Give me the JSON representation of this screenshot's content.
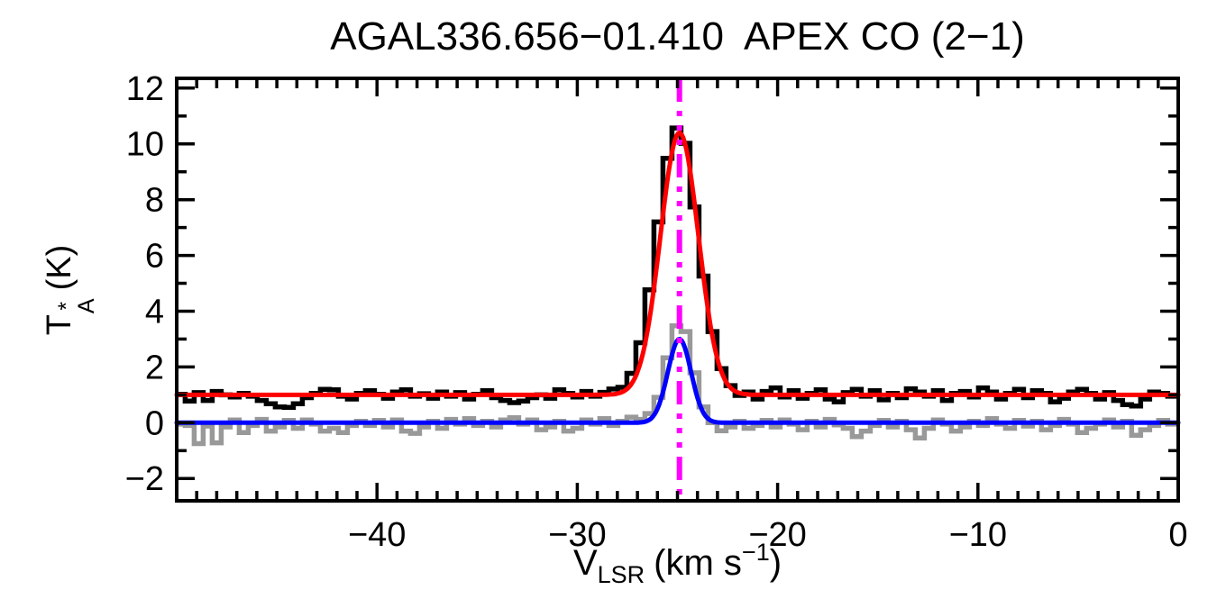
{
  "figure": {
    "title": "AGAL336.656−01.410  APEX CO (2−1)",
    "background_color": "#FFFFFF",
    "axis_color": "#000000"
  },
  "axis_labels": {
    "y_base": "T",
    "y_sup": "*",
    "y_sub": "A",
    "y_unit": "(K)",
    "x_base": "V",
    "x_sub": "LSR",
    "x_unit_open": "(km s",
    "x_sup": "−1",
    "x_unit_close": ")"
  },
  "chart_data": {
    "type": "line",
    "title": "AGAL336.656−01.410  APEX CO (2−1)",
    "xlabel": "V_LSR (km s^−1)",
    "ylabel": "T*_A (K)",
    "xlim": [
      -50,
      0
    ],
    "ylim": [
      -2.8,
      12.35
    ],
    "x_major_ticks": [
      -40,
      -30,
      -20,
      -10,
      0
    ],
    "x_minor_step": 1,
    "y_major_ticks": [
      -2,
      0,
      2,
      4,
      6,
      8,
      10,
      12
    ],
    "y_minor_step": 1,
    "grid": false,
    "x_start": -49.8,
    "channel_width_kms": 0.45,
    "marker_line": {
      "label": "vlsr-marker",
      "x": -24.9,
      "color": "#FF00FF",
      "style": "dash-dot-dot-dot"
    },
    "series": [
      {
        "name": "observed-co-spectrum",
        "style": "histogram",
        "color": "#000000",
        "baseline_level": 1.0,
        "peak_value": 10.57,
        "peak_velocity": -25.0,
        "values": [
          1.02,
          0.78,
          1.08,
          0.8,
          1.12,
          1.0,
          0.92,
          1.05,
          0.95,
          0.8,
          0.68,
          0.57,
          0.55,
          0.68,
          0.9,
          1.05,
          1.2,
          1.18,
          0.95,
          0.85,
          1.05,
          1.15,
          1.02,
          0.88,
          1.1,
          1.18,
          0.95,
          1.04,
          0.88,
          1.1,
          0.95,
          1.08,
          0.85,
          1.02,
          1.15,
          0.9,
          0.8,
          0.72,
          0.78,
          0.9,
          1.0,
          0.88,
          1.18,
          1.05,
          0.92,
          1.12,
          0.95,
          1.09,
          1.21,
          1.27,
          1.77,
          2.87,
          4.77,
          7.2,
          9.48,
          10.57,
          10.02,
          7.74,
          5.26,
          3.27,
          1.94,
          1.33,
          0.98,
          1.1,
          0.85,
          1.12,
          1.25,
          0.92,
          1.15,
          0.88,
          1.05,
          1.18,
          0.85,
          0.75,
          1.08,
          1.2,
          0.95,
          1.15,
          0.82,
          1.05,
          0.9,
          1.22,
          1.1,
          0.95,
          1.15,
          0.8,
          1.05,
          1.12,
          0.92,
          1.25,
          1.1,
          0.85,
          1.05,
          1.2,
          0.9,
          1.15,
          1.05,
          0.75,
          0.88,
          1.1,
          1.2,
          1.05,
          0.85,
          1.08,
          0.8,
          0.65,
          0.6,
          0.85,
          1.1,
          1.05,
          0.95
        ]
      },
      {
        "name": "residual-spectrum",
        "style": "histogram",
        "color": "#999999",
        "baseline_level": 0.0,
        "peak_value": 3.48,
        "peak_velocity": -25.0,
        "values": [
          -0.05,
          -0.1,
          -0.75,
          -0.12,
          -0.72,
          -0.15,
          0.1,
          -0.35,
          -0.1,
          0.12,
          -0.3,
          -0.15,
          0.08,
          -0.2,
          0.1,
          -0.05,
          -0.3,
          -0.2,
          -0.35,
          -0.1,
          0.05,
          -0.1,
          0.08,
          -0.15,
          0.1,
          -0.3,
          -0.38,
          -0.15,
          0.05,
          -0.2,
          0.12,
          -0.05,
          0.15,
          -0.1,
          0.05,
          -0.15,
          0.1,
          0.18,
          -0.05,
          0.1,
          -0.25,
          -0.15,
          0.05,
          -0.3,
          -0.2,
          0.1,
          -0.05,
          0.15,
          -0.1,
          0.05,
          0.2,
          0.12,
          0.33,
          0.91,
          2.33,
          3.48,
          3.27,
          1.79,
          0.57,
          0.0,
          -0.29,
          -0.15,
          0.05,
          -0.2,
          -0.1,
          0.08,
          -0.15,
          0.1,
          -0.05,
          -0.25,
          0.05,
          -0.15,
          0.12,
          -0.08,
          -0.2,
          -0.5,
          -0.3,
          -0.1,
          0.08,
          -0.15,
          0.05,
          -0.25,
          -0.55,
          -0.2,
          0.1,
          -0.05,
          -0.3,
          -0.15,
          0.05,
          -0.1,
          0.15,
          -0.05,
          -0.2,
          0.08,
          -0.12,
          0.05,
          -0.25,
          -0.1,
          0.12,
          -0.05,
          -0.35,
          -0.2,
          -0.05,
          0.1,
          -0.15,
          0.05,
          -0.45,
          -0.25,
          -0.1,
          0.08,
          -0.05
        ]
      },
      {
        "name": "gaussian-fit-observed",
        "style": "gaussian",
        "color": "#FF0000",
        "baseline": 1.0,
        "amplitude": 9.4,
        "center": -24.9,
        "sigma": 0.95
      },
      {
        "name": "gaussian-fit-residual",
        "style": "gaussian",
        "color": "#0000FF",
        "baseline": 0.0,
        "amplitude": 3.0,
        "center": -24.9,
        "sigma": 0.58
      }
    ]
  }
}
